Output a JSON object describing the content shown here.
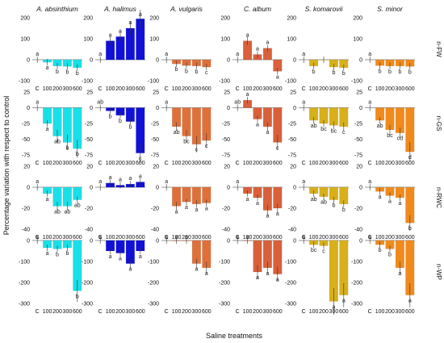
{
  "chart_data": {
    "type": "bar",
    "ylabel": "Percentage variation with respect to control",
    "xlabel": "Saline treatments",
    "species": [
      {
        "name": "A. absinthium",
        "categories": [
          "C",
          "100",
          "200",
          "300",
          "600"
        ],
        "color": "#19e0e8"
      },
      {
        "name": "A. halimus",
        "categories": [
          "C",
          "100",
          "200",
          "300",
          "600"
        ],
        "color": "#1010d8"
      },
      {
        "name": "A. vulgaris",
        "categories": [
          "C",
          "100",
          "200",
          "300",
          "600"
        ],
        "color": "#e0703a"
      },
      {
        "name": "C. album",
        "categories": [
          "C",
          "100",
          "200",
          "300",
          "600"
        ],
        "color": "#d9603a"
      },
      {
        "name": "S. komarovii",
        "categories": [
          "C",
          "100",
          "200",
          "300",
          "600"
        ],
        "color": "#d7b01a"
      },
      {
        "name": "S. minor",
        "categories": [
          "C",
          "100",
          "200",
          "300",
          "600"
        ],
        "color": "#f08a1a"
      }
    ],
    "rows": [
      {
        "label": "n-FW",
        "ylim": [
          -100,
          200
        ],
        "ticks": [
          -100,
          0,
          100,
          200
        ],
        "panels": [
          {
            "values": [
              0,
              -12,
              -30,
              -32,
              -38
            ],
            "letters": [
              "a",
              "a",
              "b",
              "b",
              "b"
            ]
          },
          {
            "values": [
              0,
              90,
              110,
              150,
              195
            ],
            "letters": [
              "a",
              "a",
              "a",
              "a",
              "a"
            ]
          },
          {
            "values": [
              0,
              -20,
              -28,
              -30,
              -35
            ],
            "letters": [
              "a",
              "b",
              "b",
              "b",
              "c"
            ]
          },
          {
            "values": [
              0,
              90,
              25,
              55,
              -55
            ],
            "letters": [
              "a",
              "a",
              "a",
              "a",
              "a"
            ]
          },
          {
            "values": [
              0,
              -30,
              0,
              -35,
              -38
            ],
            "letters": [
              "a",
              "b",
              "",
              "b",
              "b"
            ]
          },
          {
            "values": [
              0,
              -28,
              -30,
              -30,
              -32
            ],
            "letters": [
              "a",
              "b",
              "b",
              "b",
              "b"
            ]
          }
        ]
      },
      {
        "label": "n-GS",
        "ylim": [
          -75,
          25
        ],
        "ticks": [
          -75,
          -50,
          -25,
          0,
          25
        ],
        "panels": [
          {
            "values": [
              0,
              -25,
              -45,
              -55,
              -65
            ],
            "letters": [
              "a",
              "a",
              "ab",
              "b",
              "b"
            ]
          },
          {
            "values": [
              0,
              -5,
              -12,
              -22,
              -72
            ],
            "letters": [
              "ab",
              "b",
              "b",
              "b",
              "c"
            ]
          },
          {
            "values": [
              0,
              -30,
              -45,
              -58,
              -52
            ],
            "letters": [
              "a",
              "ab",
              "bc",
              "c",
              "c"
            ]
          },
          {
            "values": [
              0,
              12,
              -18,
              -30,
              -55
            ],
            "letters": [
              "ab",
              "a",
              "a",
              "a",
              "c"
            ]
          },
          {
            "values": [
              0,
              -20,
              -25,
              -28,
              -30
            ],
            "letters": [
              "a",
              "ab",
              "bc",
              "bc",
              "c"
            ]
          },
          {
            "values": [
              0,
              -20,
              -35,
              -40,
              -70
            ],
            "letters": [
              "a",
              "ab",
              "bc",
              "cd",
              "d"
            ]
          }
        ]
      },
      {
        "label": "n-RWC",
        "ylim": [
          -40,
          20
        ],
        "ticks": [
          -40,
          -20,
          0,
          20
        ],
        "panels": [
          {
            "values": [
              0,
              -6,
              -18,
              -18,
              -12
            ],
            "letters": [
              "a",
              "a",
              "ab",
              "ab",
              "ab"
            ]
          },
          {
            "values": [
              0,
              4,
              2,
              3,
              5
            ],
            "letters": [
              "a",
              "a",
              "a",
              "a",
              "a"
            ]
          },
          {
            "values": [
              0,
              -18,
              -14,
              -16,
              -15
            ],
            "letters": [
              "a",
              "a",
              "a",
              "a",
              "a"
            ]
          },
          {
            "values": [
              0,
              -6,
              -10,
              -22,
              -20
            ],
            "letters": [
              "a",
              "a",
              "a",
              "a",
              "a"
            ]
          },
          {
            "values": [
              0,
              -6,
              -9,
              -12,
              -16
            ],
            "letters": [
              "a",
              "ab",
              "ab",
              "b",
              "b"
            ]
          },
          {
            "values": [
              0,
              -4,
              -8,
              -10,
              -34
            ],
            "letters": [
              "a",
              "a",
              "a",
              "a",
              "b"
            ]
          }
        ]
      },
      {
        "label": "n-WP",
        "ylim": [
          -300,
          0
        ],
        "ticks": [
          -300,
          -200,
          -100,
          0
        ],
        "panels": [
          {
            "values": [
              0,
              -35,
              -40,
              -35,
              -240
            ],
            "letters": [
              "a",
              "a",
              "b",
              "b",
              "b"
            ]
          },
          {
            "values": [
              0,
              -50,
              -60,
              -110,
              -50
            ],
            "letters": [
              "a",
              "a",
              "a",
              "a",
              "a"
            ]
          },
          {
            "values": [
              0,
              0,
              0,
              -110,
              -130
            ],
            "letters": [
              "a",
              "a",
              "a",
              "a",
              "a"
            ]
          },
          {
            "values": [
              0,
              0,
              -150,
              -130,
              -160
            ],
            "letters": [
              "a",
              "a",
              "a",
              "a",
              "a"
            ]
          },
          {
            "values": [
              0,
              -20,
              -25,
              -290,
              -260
            ],
            "letters": [
              "a",
              "bc",
              "c",
              "a",
              "a"
            ]
          },
          {
            "values": [
              0,
              -20,
              -40,
              -130,
              -260
            ],
            "letters": [
              "a",
              "b",
              "b",
              "a",
              "a"
            ]
          }
        ]
      }
    ]
  }
}
